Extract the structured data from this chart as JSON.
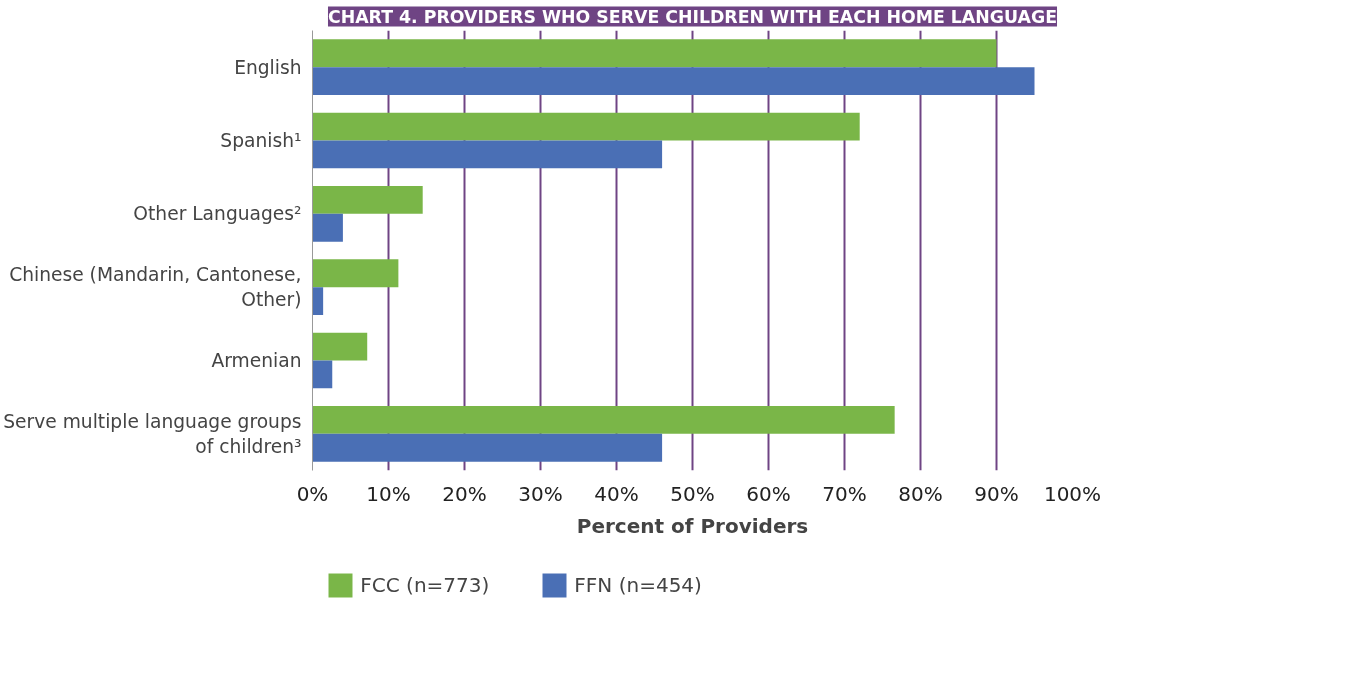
{
  "chart_data": {
    "type": "bar",
    "orientation": "horizontal",
    "title": "CHART 4. PROVIDERS WHO SERVE CHILDREN WITH EACH HOME LANGUAGE",
    "xlabel": "Percent of Providers",
    "categories": [
      "English",
      "Spanish¹",
      "Other Languages²",
      "Chinese (Mandarin, Cantonese, Other)",
      "Armenian",
      "Serve multiple language groups of children³"
    ],
    "series": [
      {
        "name": "FCC (n=773)",
        "color": "#7ab648",
        "values": [
          90,
          72,
          14.5,
          11.3,
          7.2,
          76.6
        ]
      },
      {
        "name": "FFN (n=454)",
        "color": "#4a6fb5",
        "values": [
          95,
          46,
          4,
          1.4,
          2.6,
          46
        ]
      }
    ],
    "xlim": [
      0,
      100
    ],
    "xticks": [
      {
        "value": 0,
        "label": "0%"
      },
      {
        "value": 10,
        "label": "10%"
      },
      {
        "value": 20,
        "label": "20%"
      },
      {
        "value": 30,
        "label": "30%"
      },
      {
        "value": 40,
        "label": "40%"
      },
      {
        "value": 50,
        "label": "50%"
      },
      {
        "value": 60,
        "label": "60%"
      },
      {
        "value": 70,
        "label": "70%"
      },
      {
        "value": 80,
        "label": "80%"
      },
      {
        "value": 90,
        "label": "90%"
      },
      {
        "value": 100,
        "label": "100%"
      }
    ],
    "grid": "x",
    "legend": "bottom left"
  }
}
